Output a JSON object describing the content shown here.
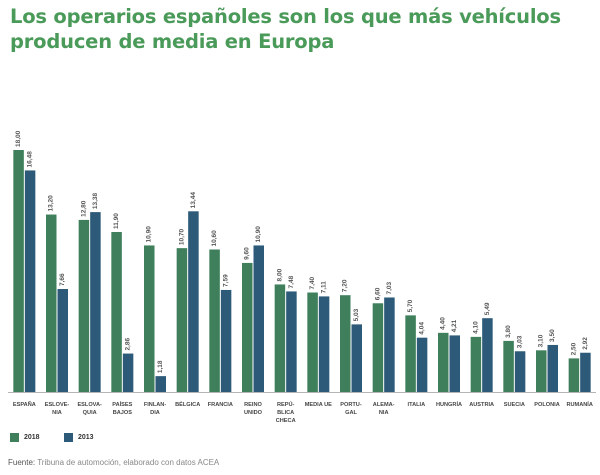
{
  "title_lines": [
    "Los operarios españoles son los que más vehículos",
    "producen de media en Europa"
  ],
  "colors": {
    "title": "#4a9a59",
    "series_2018": "#3f7f5c",
    "series_2013": "#2d5a78"
  },
  "legend": [
    {
      "label": "2018",
      "color": "#3f7f5c"
    },
    {
      "label": "2013",
      "color": "#2d5a78"
    }
  ],
  "source": {
    "prefix": "Fuente:",
    "text": "Tribuna de automoción, elaborado con datos ACEA"
  },
  "chart_data": {
    "type": "bar",
    "title": "Los operarios españoles son los que más vehículos producen de media en Europa",
    "xlabel": "",
    "ylabel": "",
    "ylim": [
      0,
      18
    ],
    "grid": false,
    "legend_position": "bottom-left",
    "categories": [
      [
        "ESPAÑA"
      ],
      [
        "ESLOVE-",
        "NIA"
      ],
      [
        "ESLOVA-",
        "QUIA"
      ],
      [
        "PAÍSES",
        "BAJOS"
      ],
      [
        "FINLAN-",
        "DIA"
      ],
      [
        "BÉLGICA"
      ],
      [
        "FRANCIA"
      ],
      [
        "REINO",
        "UNIDO"
      ],
      [
        "REPÚ-",
        "BLICA",
        "CHECA"
      ],
      [
        "MEDIA UE"
      ],
      [
        "PORTU-",
        "GAL"
      ],
      [
        "ALEMA-",
        "NIA"
      ],
      [
        "ITALIA"
      ],
      [
        "HUNGRÍA"
      ],
      [
        "AUSTRIA"
      ],
      [
        "SUECIA"
      ],
      [
        "POLONIA"
      ],
      [
        "RUMANÍA"
      ]
    ],
    "series": [
      {
        "name": "2018",
        "values": [
          18.0,
          13.2,
          12.8,
          11.9,
          10.9,
          10.7,
          10.6,
          9.6,
          8.0,
          7.4,
          7.2,
          6.6,
          5.7,
          4.4,
          4.1,
          3.8,
          3.1,
          2.5
        ],
        "labels": [
          "18,00",
          "13,20",
          "12,80",
          "11,90",
          "10,90",
          "10,70",
          "10,60",
          "9,60",
          "8,00",
          "7,40",
          "7,20",
          "6,60",
          "5,70",
          "4,40",
          "4,10",
          "3,80",
          "3,10",
          "2,50"
        ]
      },
      {
        "name": "2013",
        "values": [
          16.48,
          7.66,
          13.38,
          2.86,
          1.18,
          13.44,
          7.59,
          10.9,
          7.48,
          7.11,
          5.03,
          7.03,
          4.04,
          4.21,
          5.49,
          3.03,
          3.5,
          2.92
        ],
        "labels": [
          "16,48",
          "7,66",
          "13,38",
          "2,86",
          "1,18",
          "13,44",
          "7,59",
          "10,90",
          "7,48",
          "7,11",
          "5,03",
          "7,03",
          "4,04",
          "4,21",
          "5,49",
          "3,03",
          "3,50",
          "2,92"
        ]
      }
    ]
  }
}
